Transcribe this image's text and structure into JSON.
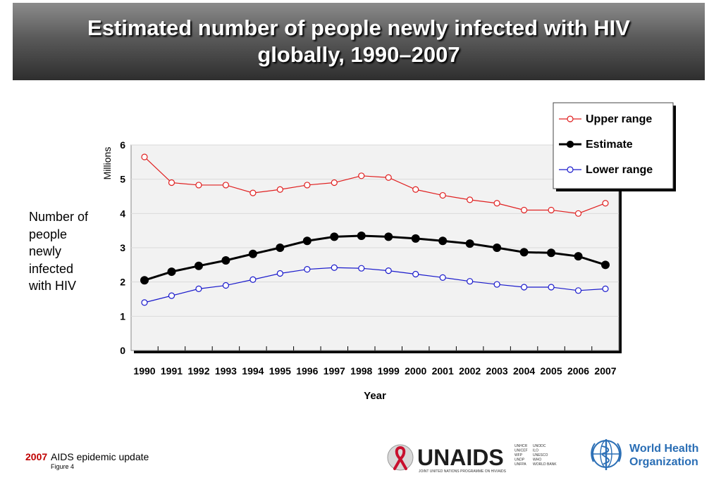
{
  "header": {
    "title_line1": "Estimated number of people newly infected with HIV",
    "title_line2": "globally, 1990–2007"
  },
  "side_label": {
    "line1": "Number of",
    "line2": "people",
    "line3": "newly",
    "line4": "infected",
    "line5": "with HIV"
  },
  "footer": {
    "year": "2007",
    "report": "AIDS epidemic update",
    "figure": "Figure 4"
  },
  "logos": {
    "unaids_text": "UNAIDS",
    "unaids_tagline": "JOINT UNITED NATIONS PROGRAMME ON HIV/AIDS",
    "unaids_partners_col1": [
      "UNHCR",
      "UNICEF",
      "WFP",
      "UNDP",
      "UNFPA"
    ],
    "unaids_partners_col2": [
      "UNODC",
      "ILO",
      "UNESCO",
      "WHO",
      "WORLD BANK"
    ],
    "who_line1": "World Health",
    "who_line2": "Organization"
  },
  "colors": {
    "upper": "#e02020",
    "estimate": "#000000",
    "lower": "#1a1acc",
    "unaids_red": "#c8102e",
    "who_blue": "#2a6eb5"
  },
  "chart_data": {
    "type": "line",
    "title": "Estimated number of people newly infected with HIV globally, 1990–2007",
    "xlabel": "Year",
    "ylabel": "Millions",
    "categories": [
      "1990",
      "1991",
      "1992",
      "1993",
      "1994",
      "1995",
      "1996",
      "1997",
      "1998",
      "1999",
      "2000",
      "2001",
      "2002",
      "2003",
      "2004",
      "2005",
      "2006",
      "2007"
    ],
    "y_ticks": [
      "0",
      "1",
      "2",
      "3",
      "4",
      "5",
      "6"
    ],
    "ylim": [
      0,
      6
    ],
    "grid": "horizontal",
    "legend_position": "top-right",
    "series": [
      {
        "name": "Upper range",
        "color": "#e02020",
        "marker": "open-circle",
        "values": [
          5.65,
          4.9,
          4.83,
          4.83,
          4.6,
          4.7,
          4.83,
          4.9,
          5.1,
          5.05,
          4.7,
          4.53,
          4.4,
          4.3,
          4.1,
          4.1,
          4.0,
          4.3
        ]
      },
      {
        "name": "Estimate",
        "color": "#000000",
        "marker": "filled-circle",
        "values": [
          2.05,
          2.3,
          2.47,
          2.63,
          2.82,
          3.0,
          3.2,
          3.32,
          3.35,
          3.32,
          3.27,
          3.2,
          3.12,
          3.0,
          2.87,
          2.85,
          2.75,
          2.5
        ]
      },
      {
        "name": "Lower range",
        "color": "#1a1acc",
        "marker": "open-circle",
        "values": [
          1.4,
          1.6,
          1.8,
          1.9,
          2.07,
          2.25,
          2.37,
          2.42,
          2.4,
          2.33,
          2.23,
          2.13,
          2.02,
          1.93,
          1.85,
          1.85,
          1.75,
          1.8
        ]
      }
    ]
  }
}
